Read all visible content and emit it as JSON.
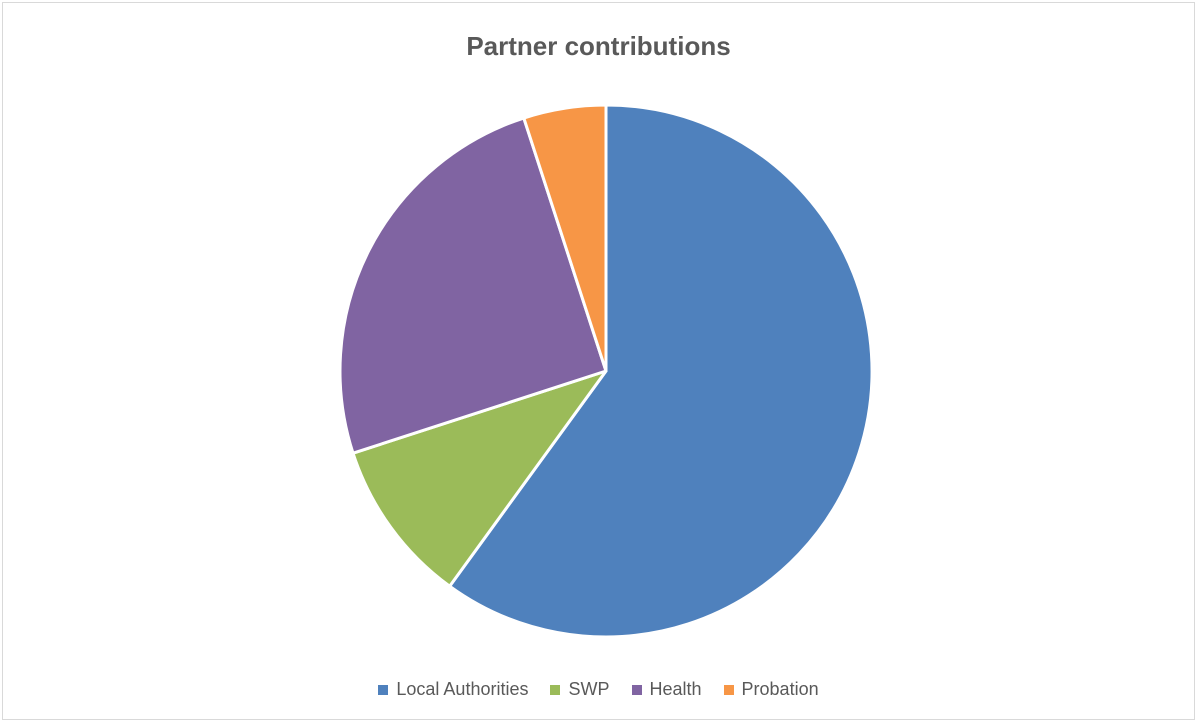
{
  "chart_data": {
    "type": "pie",
    "title": "Partner contributions",
    "categories": [
      "Local Authorities",
      "SWP",
      "Health",
      "Probation"
    ],
    "values": [
      60,
      10,
      25,
      5
    ],
    "colors": [
      "#4f81bd",
      "#9bbb59",
      "#8064a2",
      "#f79646"
    ],
    "legend_position": "bottom"
  }
}
